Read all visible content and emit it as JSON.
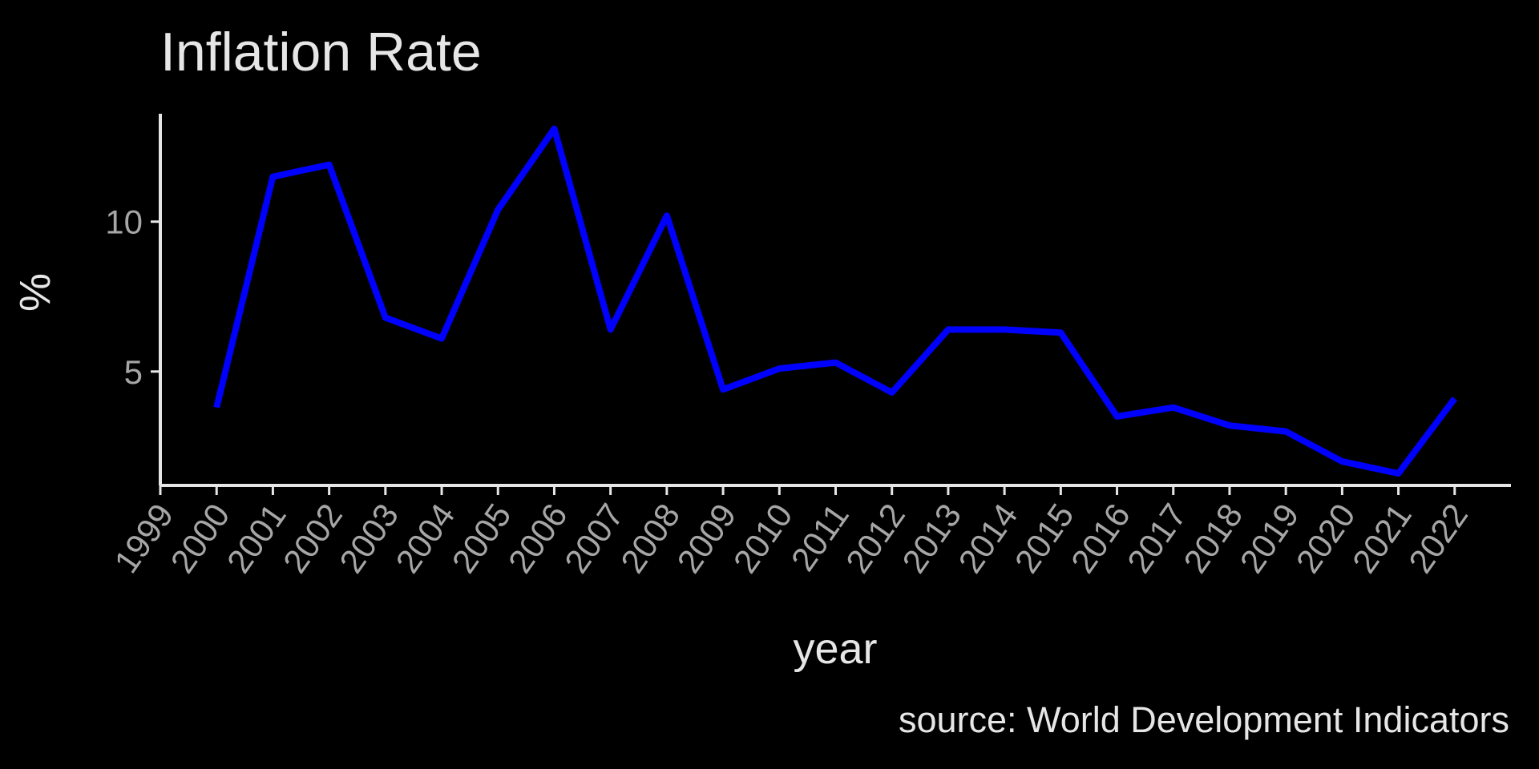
{
  "chart_data": {
    "type": "line",
    "title": "Inflation Rate",
    "xlabel": "year",
    "ylabel": "%",
    "caption": "source: World Development Indicators",
    "x": [
      2000,
      2001,
      2002,
      2003,
      2004,
      2005,
      2006,
      2007,
      2008,
      2009,
      2010,
      2011,
      2012,
      2013,
      2014,
      2015,
      2016,
      2017,
      2018,
      2019,
      2020,
      2021,
      2022
    ],
    "x_ticks": [
      "1999",
      "2000",
      "2001",
      "2002",
      "2003",
      "2004",
      "2005",
      "2006",
      "2007",
      "2008",
      "2009",
      "2010",
      "2011",
      "2012",
      "2013",
      "2014",
      "2015",
      "2016",
      "2017",
      "2018",
      "2019",
      "2020",
      "2021",
      "2022"
    ],
    "xlim": [
      1999,
      2023
    ],
    "y_ticks": [
      5,
      10
    ],
    "ylim": [
      1.2,
      13.6
    ],
    "grid": false,
    "legend": "none",
    "series": [
      {
        "color": "#0000ff",
        "values": [
          3.8,
          11.5,
          11.9,
          6.8,
          6.1,
          10.4,
          13.1,
          6.4,
          10.2,
          4.4,
          5.1,
          5.3,
          4.3,
          6.4,
          6.4,
          6.3,
          3.5,
          3.8,
          3.2,
          3.0,
          2.0,
          1.6,
          4.1
        ]
      }
    ]
  }
}
